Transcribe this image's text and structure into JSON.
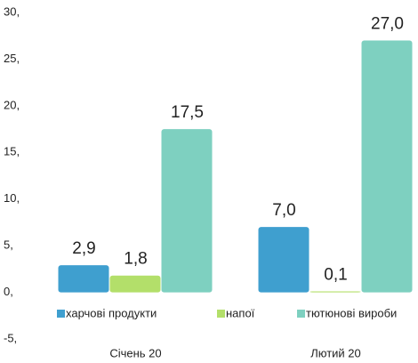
{
  "chart_data": {
    "type": "bar",
    "categories": [
      "Січень 20",
      "Лютий 20"
    ],
    "series": [
      {
        "name": "харчові продукти",
        "color": "#3f9fcf",
        "values": [
          2.9,
          7.0
        ],
        "value_labels": [
          "2,9",
          "7,0"
        ]
      },
      {
        "name": "напої",
        "color": "#b3df6a",
        "values": [
          1.8,
          0.1
        ],
        "value_labels": [
          "1,8",
          "0,1"
        ]
      },
      {
        "name": "тютюнові вироби",
        "color": "#7ed0c0",
        "values": [
          17.5,
          27.0
        ],
        "value_labels": [
          "17,5",
          "27,0"
        ]
      }
    ],
    "ylim": [
      -5,
      30
    ],
    "yticks": [
      {
        "value": -5,
        "label": "-5,"
      },
      {
        "value": 0,
        "label": "0,"
      },
      {
        "value": 5,
        "label": "5,"
      },
      {
        "value": 10,
        "label": "10,"
      },
      {
        "value": 15,
        "label": "15,"
      },
      {
        "value": 20,
        "label": "20,"
      },
      {
        "value": 25,
        "label": "25,"
      },
      {
        "value": 30,
        "label": "30,"
      }
    ],
    "legend": "bottom"
  }
}
